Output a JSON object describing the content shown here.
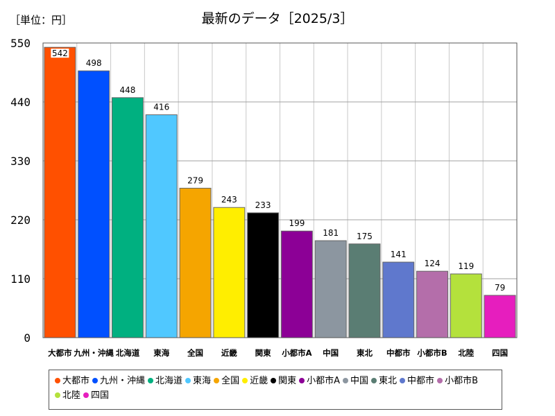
{
  "header": {
    "title": "最新のデータ［2025/3］",
    "unit": "［単位：円］"
  },
  "chart_data": {
    "type": "bar",
    "title": "最新のデータ［2025/3］",
    "ylabel": "［単位：円］",
    "xlabel": "",
    "ylim": [
      0,
      550
    ],
    "yticks": [
      0,
      110,
      220,
      330,
      440,
      550
    ],
    "grid": true,
    "legend_position": "bottom",
    "categories": [
      "大都市",
      "九州・沖縄",
      "北海道",
      "東海",
      "全国",
      "近畿",
      "関東",
      "小都市A",
      "中国",
      "東北",
      "中都市",
      "小都市B",
      "北陸",
      "四国"
    ],
    "values": [
      542,
      498,
      448,
      416,
      279,
      243,
      233,
      199,
      181,
      175,
      141,
      124,
      119,
      79
    ],
    "colors": [
      "#ff5000",
      "#0050ff",
      "#00b080",
      "#50c8ff",
      "#f5a500",
      "#ffee00",
      "#000000",
      "#8c0096",
      "#8c96a0",
      "#5a7d73",
      "#5f78cd",
      "#b46eaa",
      "#b4e13c",
      "#e61ebe"
    ]
  }
}
